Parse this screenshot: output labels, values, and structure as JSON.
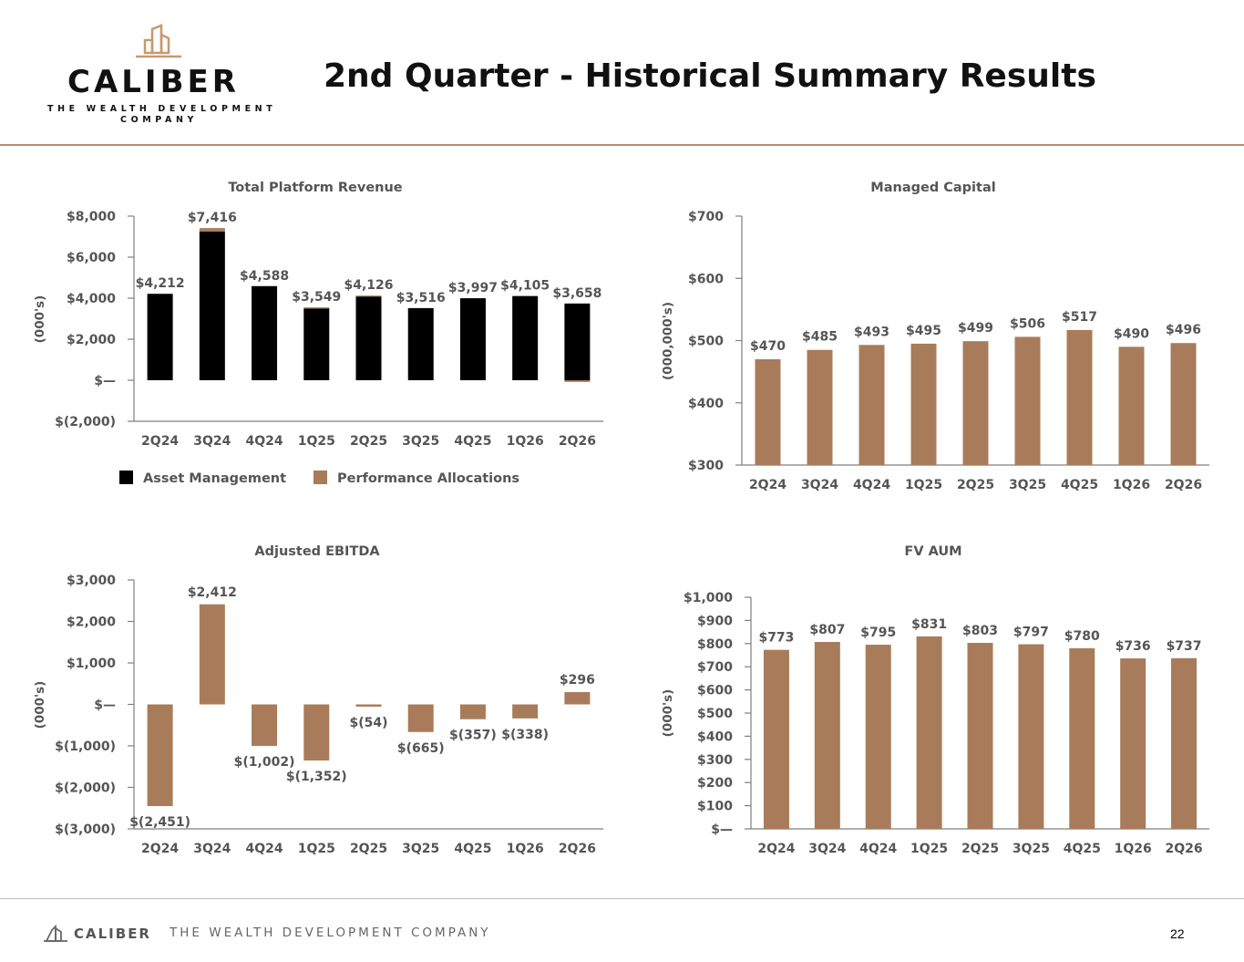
{
  "header": {
    "logo": {
      "word": "CALIBER",
      "line1": "THE WEALTH DEVELOPMENT",
      "line2": "COMPANY"
    },
    "title": "2nd Quarter - Historical Summary Results"
  },
  "footer": {
    "brand": "CALIBER",
    "tagline": "THE WEALTH DEVELOPMENT COMPANY",
    "page_number": "22"
  },
  "colors": {
    "asset_management": "#000000",
    "performance_allocations": "#a87c5a",
    "bar": "#a87c5a",
    "axis": "#7f7f7f",
    "rule": "#b88b68"
  },
  "chart_data": [
    {
      "id": "revenue",
      "type": "bar",
      "stacked": true,
      "title": "Total Platform Revenue",
      "ylabel": "(000's)",
      "categories": [
        "2Q24",
        "3Q24",
        "4Q24",
        "1Q25",
        "2Q25",
        "3Q25",
        "4Q25",
        "1Q26",
        "2Q26"
      ],
      "series": [
        {
          "name": "Asset Management",
          "values": [
            4212,
            7250,
            4588,
            3500,
            4080,
            3516,
            3997,
            4105,
            3740
          ]
        },
        {
          "name": "Performance Allocations",
          "values": [
            0,
            166,
            0,
            49,
            46,
            0,
            0,
            0,
            -82
          ]
        }
      ],
      "data_labels": [
        "$4,212",
        "$7,416",
        "$4,588",
        "$3,549",
        "$4,126",
        "$3,516",
        "$3,997",
        "$4,105",
        "$3,658"
      ],
      "totals": [
        4212,
        7416,
        4588,
        3549,
        4126,
        3516,
        3997,
        4105,
        3658
      ],
      "yticks": [
        -2000,
        0,
        2000,
        4000,
        6000,
        8000
      ],
      "ytick_labels": [
        "$(2,000)",
        "$—",
        "$2,000",
        "$4,000",
        "$6,000",
        "$8,000"
      ],
      "ylim": [
        -2000,
        8000
      ],
      "legend_position": "bottom"
    },
    {
      "id": "managed-capital",
      "type": "bar",
      "title": "Managed Capital",
      "ylabel": "(000,000's)",
      "categories": [
        "2Q24",
        "3Q24",
        "4Q24",
        "1Q25",
        "2Q25",
        "3Q25",
        "4Q25",
        "1Q26",
        "2Q26"
      ],
      "values": [
        470,
        485,
        493,
        495,
        499,
        506,
        517,
        490,
        496
      ],
      "data_labels": [
        "$470",
        "$485",
        "$493",
        "$495",
        "$499",
        "$506",
        "$517",
        "$490",
        "$496"
      ],
      "yticks": [
        300,
        400,
        500,
        600,
        700
      ],
      "ytick_labels": [
        "$300",
        "$400",
        "$500",
        "$600",
        "$700"
      ],
      "ylim": [
        300,
        700
      ]
    },
    {
      "id": "ebitda",
      "type": "bar",
      "title": "Adjusted EBITDA",
      "ylabel": "(000's)",
      "categories": [
        "2Q24",
        "3Q24",
        "4Q24",
        "1Q25",
        "2Q25",
        "3Q25",
        "4Q25",
        "1Q26",
        "2Q26"
      ],
      "values": [
        -2451,
        2412,
        -1002,
        -1352,
        -54,
        -665,
        -357,
        -338,
        296
      ],
      "data_labels": [
        "$(2,451)",
        "$2,412",
        "$(1,002)",
        "$(1,352)",
        "$(54)",
        "$(665)",
        "$(357)",
        "$(338)",
        "$296"
      ],
      "yticks": [
        -3000,
        -2000,
        -1000,
        0,
        1000,
        2000,
        3000
      ],
      "ytick_labels": [
        "$(3,000)",
        "$(2,000)",
        "$(1,000)",
        "$—",
        "$1,000",
        "$2,000",
        "$3,000"
      ],
      "ylim": [
        -3000,
        3000
      ]
    },
    {
      "id": "fv-aum",
      "type": "bar",
      "title": "FV AUM",
      "ylabel": "(000's)",
      "categories": [
        "2Q24",
        "3Q24",
        "4Q24",
        "1Q25",
        "2Q25",
        "3Q25",
        "4Q25",
        "1Q26",
        "2Q26"
      ],
      "values": [
        773,
        807,
        795,
        831,
        803,
        797,
        780,
        736,
        737
      ],
      "data_labels": [
        "$773",
        "$807",
        "$795",
        "$831",
        "$803",
        "$797",
        "$780",
        "$736",
        "$737"
      ],
      "yticks": [
        0,
        100,
        200,
        300,
        400,
        500,
        600,
        700,
        800,
        900,
        1000
      ],
      "ytick_labels": [
        "$—",
        "$100",
        "$200",
        "$300",
        "$400",
        "$500",
        "$600",
        "$700",
        "$800",
        "$900",
        "$1,000"
      ],
      "ylim": [
        0,
        1000
      ]
    }
  ]
}
